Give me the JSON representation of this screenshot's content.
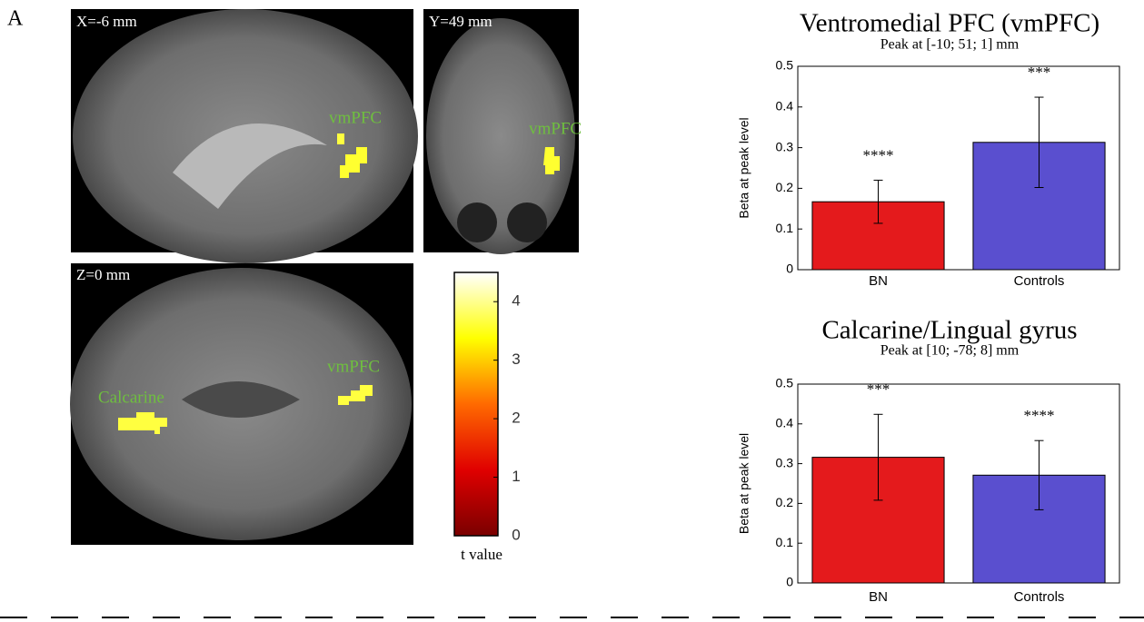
{
  "panel_label": "A",
  "slices": [
    {
      "label": "X=-6 mm",
      "regions": [
        "vmPFC"
      ]
    },
    {
      "label": "Y=49 mm",
      "regions": [
        "vmPFC"
      ]
    },
    {
      "label": "Z=0 mm",
      "regions": [
        "Calcarine",
        "vmPFC"
      ]
    }
  ],
  "colorbar": {
    "label": "t value",
    "ylim": [
      0,
      4.5
    ],
    "yticks": [
      0,
      1,
      2,
      3,
      4
    ],
    "colors": [
      "#7a0000",
      "#e00000",
      "#ff6a00",
      "#ffff00",
      "#ffffff"
    ]
  },
  "chart_data": [
    {
      "type": "bar",
      "title": "Ventromedial PFC (vmPFC)",
      "subtitle": "Peak at [-10; 51; 1] mm",
      "y_label": "Beta at peak level",
      "categories": [
        "BN",
        "Controls"
      ],
      "values": [
        0.167,
        0.313
      ],
      "errors": [
        0.053,
        0.111
      ],
      "annotations": [
        "****",
        "***"
      ],
      "colors": [
        "#e41a1c",
        "#5a4fcf"
      ],
      "ylim": [
        0,
        0.5
      ],
      "yticks": [
        0,
        0.1,
        0.2,
        0.3,
        0.4,
        0.5
      ]
    },
    {
      "type": "bar",
      "title": "Calcarine/Lingual gyrus",
      "subtitle": "Peak at [10; -78; 8] mm",
      "y_label": "Beta at peak level",
      "categories": [
        "BN",
        "Controls"
      ],
      "values": [
        0.316,
        0.271
      ],
      "errors": [
        0.108,
        0.087
      ],
      "annotations": [
        "***",
        "****"
      ],
      "colors": [
        "#e41a1c",
        "#5a4fcf"
      ],
      "ylim": [
        0,
        0.5
      ],
      "yticks": [
        0,
        0.1,
        0.2,
        0.3,
        0.4,
        0.5
      ]
    }
  ]
}
